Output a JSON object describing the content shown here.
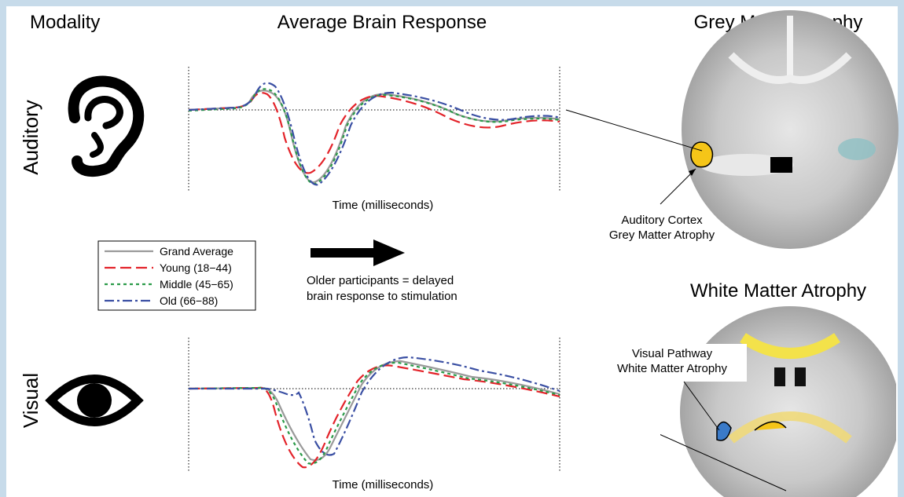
{
  "headers": {
    "modality": "Modality",
    "response": "Average Brain Response",
    "grey": "Grey Matter Atrophy",
    "white": "White Matter Atrophy"
  },
  "rows": [
    {
      "label": "Auditory",
      "x_label": "Time (milliseconds)"
    },
    {
      "label": "Visual",
      "x_label": "Time (milliseconds)"
    }
  ],
  "legend": [
    {
      "name": "Grand Average",
      "color": "#9a9a9a"
    },
    {
      "name": "Young (18−44)",
      "color": "#e3232a"
    },
    {
      "name": "Middle (45−65)",
      "color": "#2a9a48"
    },
    {
      "name": "Old (66−88)",
      "color": "#3a4fa3"
    }
  ],
  "note": [
    "Older participants = delayed",
    "brain response to stimulation"
  ],
  "annotations": {
    "grey": [
      "Auditory Cortex",
      "Grey Matter Atrophy"
    ],
    "white": [
      "Visual Pathway",
      "White Matter Atrophy"
    ]
  }
}
